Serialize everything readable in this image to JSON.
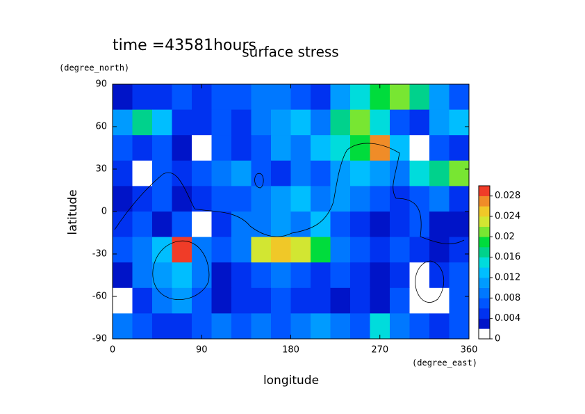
{
  "chart_data": {
    "type": "heatmap",
    "title": "surface stress",
    "subtitle": "time =43581hours",
    "x_label": "longitude",
    "y_label": "latitude",
    "x_units": "(degree_east)",
    "y_units": "(degree_north)",
    "xlim": [
      0,
      360
    ],
    "ylim": [
      -90,
      90
    ],
    "xticks": [
      0,
      90,
      180,
      270,
      360
    ],
    "yticks": [
      -90,
      -60,
      -30,
      0,
      30,
      60,
      90
    ],
    "x": [
      10,
      30,
      50,
      70,
      90,
      110,
      130,
      150,
      170,
      190,
      210,
      230,
      250,
      270,
      290,
      310,
      330,
      350
    ],
    "y": [
      81,
      63,
      45,
      27,
      9,
      -9,
      -27,
      -45,
      -63,
      -81
    ],
    "z": [
      [
        0.003,
        0.004,
        0.005,
        0.006,
        0.005,
        0.006,
        0.007,
        0.008,
        0.009,
        0.006,
        0.005,
        0.01,
        0.014,
        0.018,
        0.02,
        0.016,
        0.01,
        0.006
      ],
      [
        0.01,
        0.016,
        0.012,
        0.005,
        0.004,
        0.006,
        0.004,
        0.008,
        0.01,
        0.012,
        0.008,
        0.016,
        0.02,
        0.014,
        0.006,
        0.004,
        0.01,
        0.012
      ],
      [
        0.006,
        0.004,
        0.006,
        0.003,
        0.001,
        0.006,
        0.005,
        0.006,
        0.01,
        0.008,
        0.012,
        0.014,
        0.018,
        0.026,
        0.012,
        0.001,
        0.006,
        0.005
      ],
      [
        0.004,
        0.001,
        0.006,
        0.004,
        0.006,
        0.008,
        0.01,
        0.006,
        0.004,
        0.008,
        0.006,
        0.01,
        0.012,
        0.01,
        0.008,
        0.014,
        0.016,
        0.02
      ],
      [
        0.003,
        0.004,
        0.006,
        0.002,
        0.004,
        0.006,
        0.006,
        0.008,
        0.01,
        0.012,
        0.008,
        0.01,
        0.008,
        0.006,
        0.004,
        0.006,
        0.008,
        0.004
      ],
      [
        0.004,
        0.006,
        0.003,
        0.006,
        0.001,
        0.004,
        0.008,
        0.008,
        0.01,
        0.008,
        0.012,
        0.006,
        0.004,
        0.003,
        0.004,
        0.006,
        0.002,
        0.003
      ],
      [
        0.006,
        0.008,
        0.012,
        0.028,
        0.008,
        0.006,
        0.008,
        0.022,
        0.024,
        0.022,
        0.018,
        0.008,
        0.006,
        0.004,
        0.006,
        0.004,
        0.003,
        0.004
      ],
      [
        0.003,
        0.008,
        0.01,
        0.012,
        0.008,
        0.002,
        0.004,
        0.006,
        0.008,
        0.006,
        0.004,
        0.006,
        0.004,
        0.003,
        0.005,
        0.001,
        0.004,
        0.006
      ],
      [
        0.001,
        0.004,
        0.008,
        0.01,
        0.006,
        0.003,
        0.005,
        0.004,
        0.006,
        0.004,
        0.005,
        0.003,
        0.004,
        0.002,
        0.006,
        0.001,
        0.001,
        0.006
      ],
      [
        0.008,
        0.006,
        0.005,
        0.004,
        0.006,
        0.008,
        0.007,
        0.008,
        0.006,
        0.008,
        0.01,
        0.008,
        0.006,
        0.014,
        0.008,
        0.006,
        0.004,
        0.006
      ]
    ],
    "colorbar": {
      "lim": [
        0,
        0.03
      ],
      "ticks": [
        0,
        0.004,
        0.008,
        0.012,
        0.016,
        0.02,
        0.024,
        0.028
      ],
      "colors": [
        "#ffffff",
        "#0014c8",
        "#0032f0",
        "#0055ff",
        "#0078ff",
        "#009bff",
        "#00beff",
        "#00dcdc",
        "#00d28c",
        "#00dc3c",
        "#78e632",
        "#d2e632",
        "#f0c828",
        "#f08c28",
        "#f03c28"
      ]
    }
  }
}
